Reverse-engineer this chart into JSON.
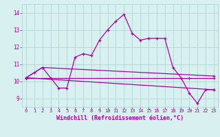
{
  "bg_color": "#d8f0f0",
  "line_color": "#aa00aa",
  "grid_color": "#b0d4d4",
  "xlabel": "Windchill (Refroidissement éolien,°C)",
  "ylim": [
    8.5,
    14.5
  ],
  "xlim": [
    -0.5,
    23.5
  ],
  "yticks": [
    9,
    10,
    11,
    12,
    13,
    14
  ],
  "xticks": [
    0,
    1,
    2,
    3,
    4,
    5,
    6,
    7,
    8,
    9,
    10,
    11,
    12,
    13,
    14,
    15,
    16,
    17,
    18,
    19,
    20,
    21,
    22,
    23
  ],
  "line1_x": [
    0,
    1,
    2,
    3,
    4,
    5,
    6,
    7,
    8,
    9,
    10,
    11,
    12,
    13,
    14,
    15,
    16,
    17,
    18,
    19,
    20,
    21,
    22,
    23
  ],
  "line1_y": [
    10.2,
    10.5,
    10.8,
    10.2,
    9.6,
    9.6,
    11.4,
    11.6,
    11.5,
    12.4,
    13.0,
    13.5,
    13.9,
    12.8,
    12.4,
    12.5,
    12.5,
    12.5,
    10.8,
    10.2,
    9.3,
    8.7,
    9.5,
    9.5
  ],
  "line2_x": [
    0,
    20,
    23
  ],
  "line2_y": [
    10.2,
    10.2,
    10.2
  ],
  "line3_x": [
    0,
    23
  ],
  "line3_y": [
    10.2,
    9.5
  ],
  "line4_x": [
    0,
    2,
    23
  ],
  "line4_y": [
    10.2,
    10.8,
    10.3
  ],
  "figw": 3.2,
  "figh": 2.0,
  "dpi": 100
}
